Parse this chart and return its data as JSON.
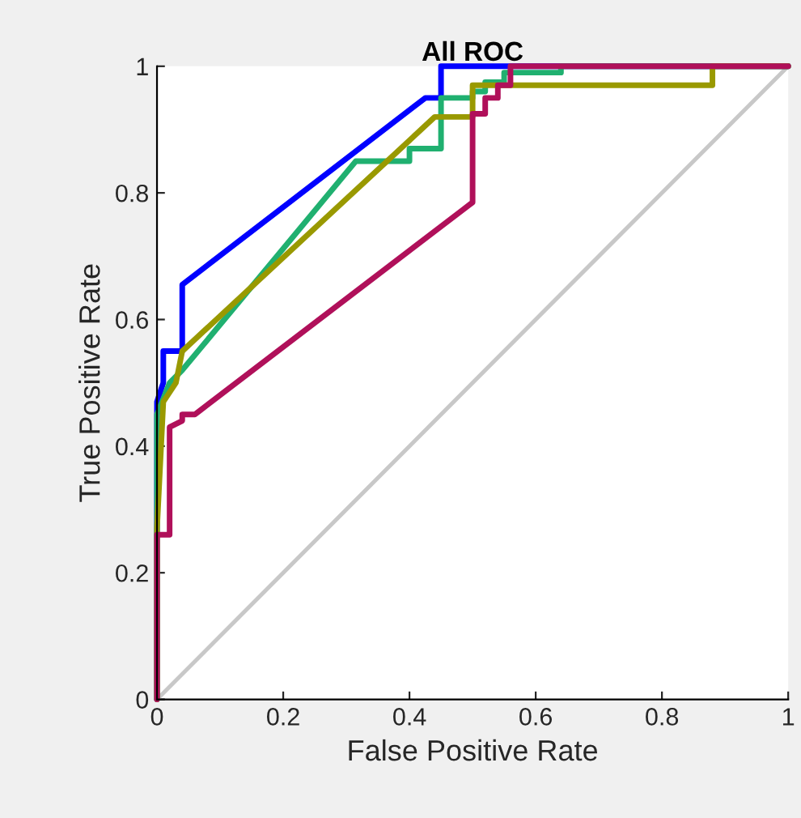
{
  "chart_data": {
    "type": "line",
    "title": "All ROC",
    "xlabel": "False Positive Rate",
    "ylabel": "True Positive Rate",
    "xlim": [
      0,
      1
    ],
    "ylim": [
      0,
      1
    ],
    "xticks": [
      0,
      0.2,
      0.4,
      0.6,
      0.8,
      1
    ],
    "yticks": [
      0,
      0.2,
      0.4,
      0.6,
      0.8,
      1
    ],
    "grid": false,
    "marker": "none",
    "line_style": "solid",
    "series": [
      {
        "color": "#c8c8c8",
        "x": [
          0,
          1
        ],
        "values": [
          0,
          1
        ]
      },
      {
        "color": "#0000ff",
        "x": [
          0,
          0,
          0.01,
          0.01,
          0.04,
          0.04,
          0.425,
          0.45,
          0.45,
          1
        ],
        "values": [
          0,
          0.47,
          0.5,
          0.55,
          0.55,
          0.655,
          0.95,
          0.95,
          1,
          1
        ]
      },
      {
        "color": "#20b070",
        "x": [
          0,
          0,
          0.02,
          0.04,
          0.315,
          0.4,
          0.4,
          0.45,
          0.45,
          0.5,
          0.5,
          0.52,
          0.52,
          0.55,
          0.55,
          0.64,
          0.64,
          1
        ],
        "values": [
          0,
          0.45,
          0.5,
          0.52,
          0.85,
          0.85,
          0.87,
          0.87,
          0.95,
          0.95,
          0.96,
          0.96,
          0.975,
          0.975,
          0.99,
          0.99,
          1,
          1
        ]
      },
      {
        "color": "#999900",
        "x": [
          0,
          0,
          0.01,
          0.03,
          0.04,
          0.44,
          0.5,
          0.5,
          0.88,
          0.88,
          1
        ],
        "values": [
          0,
          0.27,
          0.47,
          0.5,
          0.55,
          0.92,
          0.92,
          0.97,
          0.97,
          1,
          1
        ]
      },
      {
        "color": "#b0105a",
        "x": [
          0,
          0,
          0.02,
          0.02,
          0.04,
          0.04,
          0.06,
          0.5,
          0.5,
          0.52,
          0.52,
          0.54,
          0.54,
          0.56,
          0.56,
          1
        ],
        "values": [
          0,
          0.26,
          0.26,
          0.43,
          0.44,
          0.45,
          0.45,
          0.785,
          0.925,
          0.925,
          0.95,
          0.95,
          0.97,
          0.97,
          1,
          1
        ]
      }
    ]
  }
}
